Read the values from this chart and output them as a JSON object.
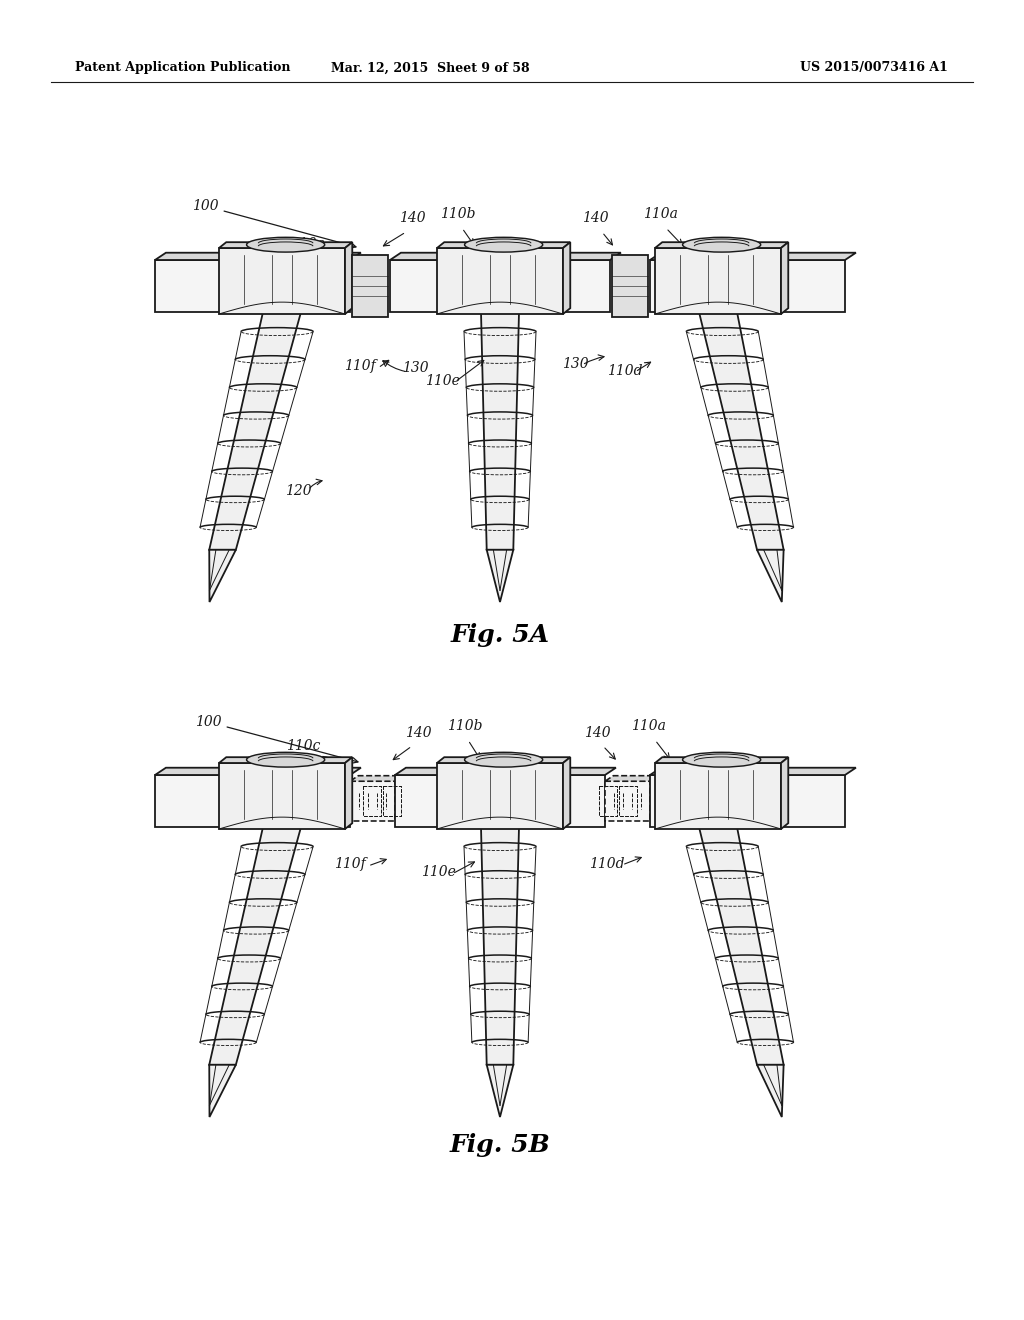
{
  "bg_color": "#ffffff",
  "header_left": "Patent Application Publication",
  "header_mid": "Mar. 12, 2015  Sheet 9 of 58",
  "header_right": "US 2015/0073416 A1",
  "fig5a_label": "Fig. 5A",
  "fig5b_label": "Fig. 5B",
  "line_color": "#1a1a1a",
  "fill_light": "#f0f0f0",
  "fill_mid": "#d8d8d8",
  "fill_dark": "#b0b0b0",
  "lw_main": 1.3,
  "lw_thin": 0.7
}
